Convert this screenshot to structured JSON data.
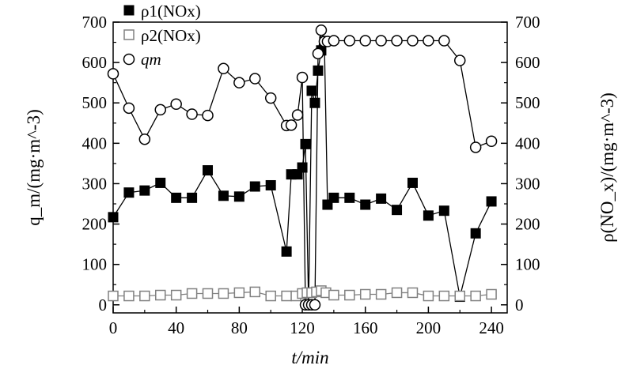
{
  "chart_data": {
    "type": "scatter",
    "title": "",
    "xlabel": "t/min",
    "ylabel_left": "q_m/(mg·m^-3)",
    "ylabel_right": "ρ(NO_x)/(mg·m^-3)",
    "xlim": [
      0,
      250
    ],
    "ylim": [
      -20,
      700
    ],
    "x_ticks": [
      0,
      40,
      80,
      120,
      160,
      200,
      240
    ],
    "y_ticks": [
      0,
      100,
      200,
      300,
      400,
      500,
      600,
      700
    ],
    "legend_position": "top-left",
    "grid": false,
    "series": [
      {
        "name": "ρ1(NOx)",
        "marker": "filled-square",
        "color": "#000000",
        "x": [
          0,
          10,
          20,
          30,
          40,
          50,
          60,
          70,
          80,
          90,
          100,
          110,
          113,
          117,
          120,
          122,
          124,
          126,
          128,
          130,
          132,
          134,
          136,
          140,
          150,
          160,
          170,
          180,
          190,
          200,
          210,
          220,
          230,
          240
        ],
        "y": [
          217,
          278,
          283,
          302,
          265,
          265,
          333,
          270,
          268,
          293,
          296,
          132,
          323,
          323,
          340,
          398,
          0,
          530,
          500,
          580,
          630,
          652,
          248,
          265,
          265,
          248,
          263,
          235,
          302,
          221,
          233,
          20,
          177,
          256
        ]
      },
      {
        "name": "ρ2(NOx)",
        "marker": "open-square",
        "color": "#808080",
        "x": [
          0,
          10,
          20,
          30,
          40,
          50,
          60,
          70,
          80,
          90,
          100,
          110,
          116,
          120,
          123,
          126,
          129,
          132,
          135,
          140,
          150,
          160,
          170,
          180,
          190,
          200,
          210,
          220,
          230,
          240
        ],
        "y": [
          22,
          22,
          22,
          24,
          24,
          28,
          28,
          28,
          30,
          32,
          22,
          22,
          22,
          28,
          30,
          30,
          32,
          35,
          30,
          24,
          24,
          26,
          26,
          30,
          30,
          22,
          22,
          22,
          22,
          26
        ]
      },
      {
        "name": "qm",
        "marker": "open-circle",
        "color": "#000000",
        "x": [
          0,
          10,
          20,
          30,
          40,
          50,
          60,
          70,
          80,
          90,
          100,
          110,
          113,
          117,
          120,
          122,
          124,
          126,
          128,
          130,
          132,
          134,
          136,
          140,
          150,
          160,
          170,
          180,
          190,
          200,
          210,
          220,
          230,
          240
        ],
        "y": [
          572,
          487,
          410,
          483,
          497,
          472,
          469,
          585,
          550,
          560,
          512,
          444,
          445,
          470,
          563,
          0,
          0,
          0,
          0,
          622,
          680,
          652,
          652,
          654,
          654,
          654,
          654,
          654,
          654,
          654,
          654,
          605,
          390,
          405
        ]
      }
    ]
  }
}
